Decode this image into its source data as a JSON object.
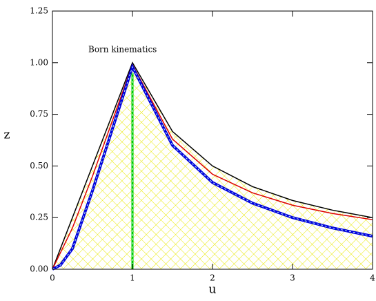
{
  "chart_data": {
    "type": "line",
    "annotation": "Born kinematics",
    "xlabel": "u",
    "ylabel": "z",
    "xlim": [
      0,
      4
    ],
    "ylim": [
      0,
      1.25
    ],
    "xticks": [
      0,
      1,
      2,
      3,
      4
    ],
    "yticks": [
      {
        "value": 0,
        "label": "0.00"
      },
      {
        "value": 0.25,
        "label": "0.25"
      },
      {
        "value": 0.5,
        "label": "0.50"
      },
      {
        "value": 0.75,
        "label": "0.75"
      },
      {
        "value": 1,
        "label": "1.00"
      },
      {
        "value": 1.25,
        "label": "1.25"
      }
    ],
    "fill_color": "#ffff66",
    "series": [
      {
        "color": "#000000",
        "x": [
          0,
          0.25,
          0.5,
          0.75,
          1,
          1.5,
          2,
          2.5,
          3,
          3.5,
          4
        ],
        "values": [
          0,
          0.25,
          0.5,
          0.75,
          1,
          0.667,
          0.5,
          0.4,
          0.333,
          0.286,
          0.25
        ],
        "fill": true
      },
      {
        "color": "#dd0000",
        "x": [
          0,
          0.25,
          0.5,
          0.75,
          1,
          1.5,
          2,
          2.5,
          3,
          3.5,
          4
        ],
        "values": [
          0,
          0.2,
          0.45,
          0.72,
          0.99,
          0.63,
          0.46,
          0.37,
          0.31,
          0.27,
          0.24
        ]
      },
      {
        "color": "#0000dd",
        "x": [
          0,
          0.1,
          0.25,
          0.5,
          0.75,
          1,
          1.5,
          2,
          2.5,
          3,
          3.5,
          4
        ],
        "values": [
          0,
          0.02,
          0.1,
          0.38,
          0.68,
          0.98,
          0.6,
          0.42,
          0.32,
          0.25,
          0.2,
          0.16
        ]
      },
      {
        "color": "#00cc00",
        "x": [
          1,
          1
        ],
        "values": [
          0,
          0.95
        ]
      }
    ]
  }
}
